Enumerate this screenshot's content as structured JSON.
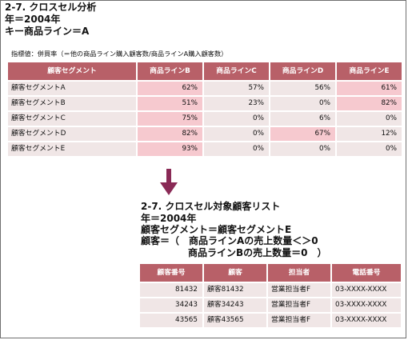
{
  "header": {
    "title": "2-7. クロスセル分析",
    "year": "年＝2004年",
    "key": "キー商品ライン＝A"
  },
  "note": "指標値：併買率（＝他の商品ライン購入顧客数/商品ラインA購入顧客数）",
  "cross_table": {
    "columns": [
      "顧客セグメント",
      "商品ラインB",
      "商品ラインC",
      "商品ラインD",
      "商品ラインE"
    ],
    "rows": [
      {
        "label": "顧客セグメントA",
        "values": [
          "62%",
          "57%",
          "56%",
          "61%"
        ],
        "highlight": [
          true,
          false,
          false,
          true
        ]
      },
      {
        "label": "顧客セグメントB",
        "values": [
          "51%",
          "23%",
          "0%",
          "82%"
        ],
        "highlight": [
          true,
          false,
          false,
          true
        ]
      },
      {
        "label": "顧客セグメントC",
        "values": [
          "75%",
          "0%",
          "6%",
          "0%"
        ],
        "highlight": [
          true,
          false,
          false,
          false
        ]
      },
      {
        "label": "顧客セグメントD",
        "values": [
          "82%",
          "0%",
          "67%",
          "12%"
        ],
        "highlight": [
          true,
          false,
          true,
          false
        ]
      },
      {
        "label": "顧客セグメントE",
        "values": [
          "93%",
          "0%",
          "0%",
          "0%"
        ],
        "highlight": [
          true,
          false,
          false,
          false
        ]
      }
    ]
  },
  "list": {
    "title": "2-7. クロスセル対象顧客リスト",
    "year": "年＝2004年",
    "segment": "顧客セグメント＝顧客セグメントE",
    "cond_line1": "顧客＝（　商品ラインAの売上数量＜＞0",
    "cond_line2": "商品ラインBの売上数量＝0　）",
    "columns": [
      "顧客番号",
      "顧客",
      "担当者",
      "電話番号"
    ],
    "rows": [
      [
        "81432",
        "顧客81432",
        "営業担当者F",
        "03-XXXX-XXXX"
      ],
      [
        "34243",
        "顧客34243",
        "営業担当者F",
        "03-XXXX-XXXX"
      ],
      [
        "43565",
        "顧客43565",
        "営業担当者F",
        "03-XXXX-XXXX"
      ]
    ]
  },
  "colors": {
    "header_bg": "#b86068",
    "cell_bg": "#f0e6e6",
    "highlight_bg": "#f6c9cf",
    "arrow": "#8a2a56"
  }
}
